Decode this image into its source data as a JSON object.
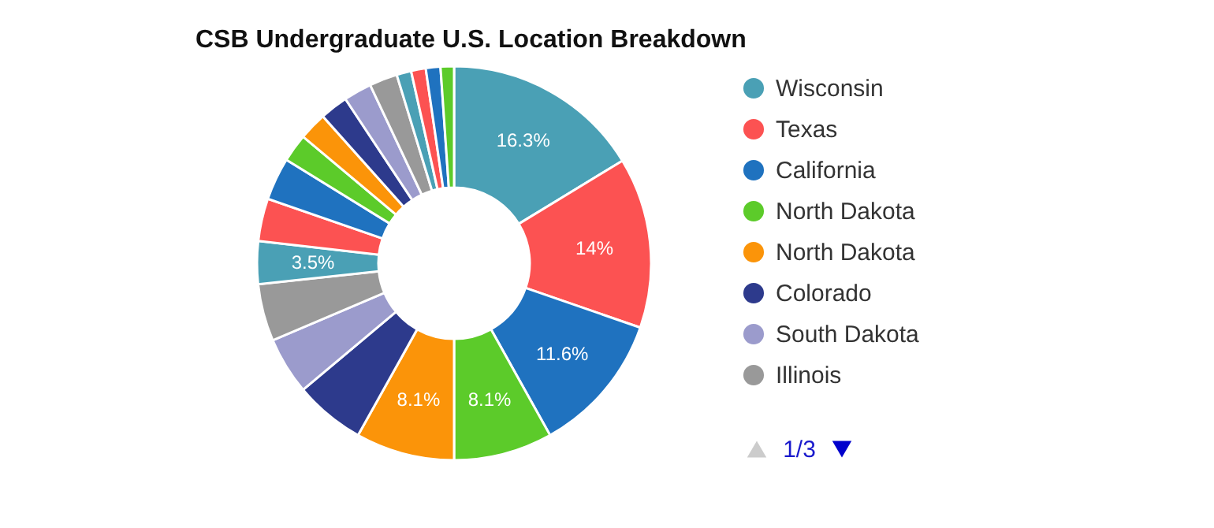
{
  "chart_data": {
    "type": "donut",
    "title": "CSB Undergraduate U.S. Location Breakdown",
    "categories": [
      "Wisconsin",
      "Texas",
      "California",
      "North Dakota",
      "North Dakota",
      "Colorado",
      "South Dakota",
      "Illinois",
      null,
      null,
      null,
      null,
      null,
      null,
      null,
      null,
      null,
      null,
      null,
      null
    ],
    "values": [
      16.3,
      14,
      11.6,
      8.1,
      8.1,
      5.8,
      4.7,
      4.7,
      3.5,
      3.5,
      3.5,
      2.3,
      2.3,
      2.3,
      2.3,
      2.3,
      1.2,
      1.2,
      1.2,
      1.1
    ],
    "colors": [
      "#4aa0b5",
      "#fc5252",
      "#1f72bf",
      "#5ccb2a",
      "#fb9409",
      "#2d3a8c",
      "#9b9bcc",
      "#999999",
      "#4aa0b5",
      "#fc5252",
      "#1f72bf",
      "#5ccb2a",
      "#fb9409",
      "#2d3a8c",
      "#9b9bcc",
      "#999999",
      "#4aa0b5",
      "#fc5252",
      "#1f72bf",
      "#5ccb2a"
    ],
    "value_labels": [
      "16.3%",
      "14%",
      "11.6%",
      "8.1%",
      "8.1%",
      null,
      null,
      null,
      "3.5%",
      null,
      null,
      null,
      null,
      null,
      null,
      null,
      null,
      null,
      null,
      null
    ],
    "legend": "right",
    "annotations": [
      "1/3"
    ]
  }
}
